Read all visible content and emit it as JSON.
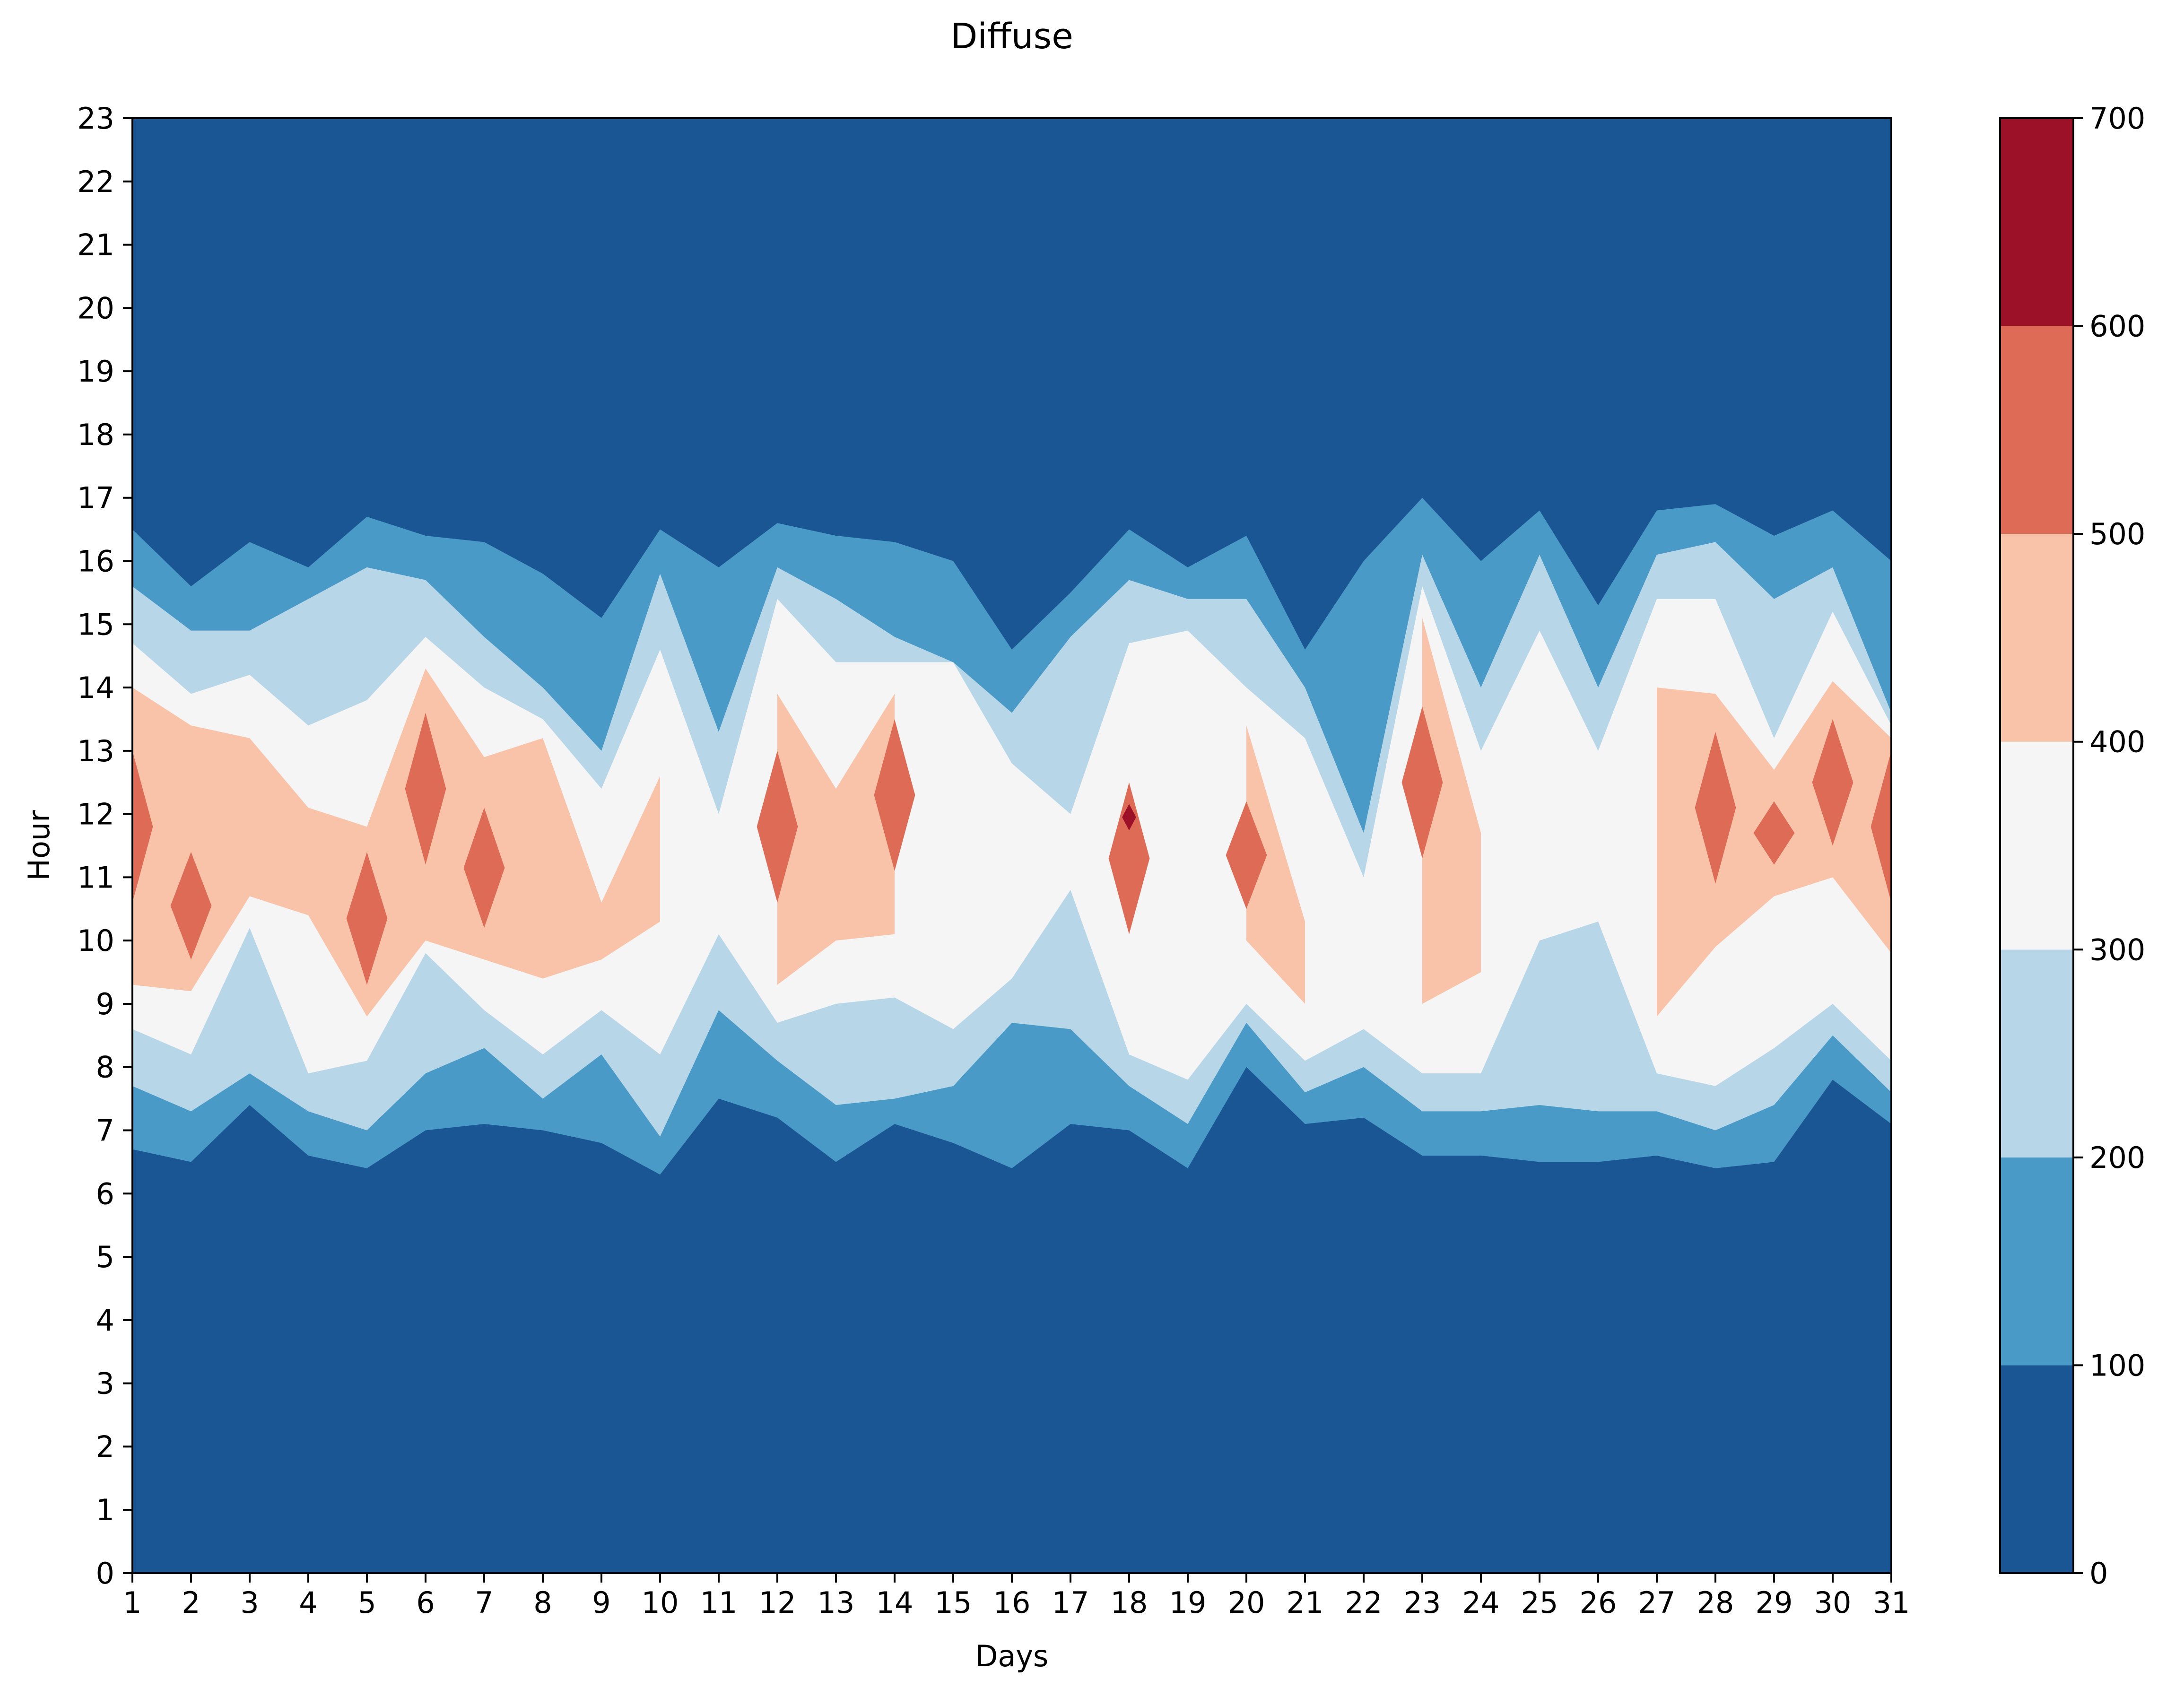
{
  "chart_data": {
    "type": "heatmap",
    "subtype": "filled-contour",
    "title": "Diffuse",
    "xlabel": "Days",
    "ylabel": "Hour",
    "xlim": [
      1,
      31
    ],
    "ylim": [
      0,
      23
    ],
    "x_ticks": [
      "1",
      "2",
      "3",
      "4",
      "5",
      "6",
      "7",
      "8",
      "9",
      "10",
      "11",
      "12",
      "13",
      "14",
      "15",
      "16",
      "17",
      "18",
      "19",
      "20",
      "21",
      "22",
      "23",
      "24",
      "25",
      "26",
      "27",
      "28",
      "29",
      "30",
      "31"
    ],
    "y_ticks": [
      "0",
      "1",
      "2",
      "3",
      "4",
      "5",
      "6",
      "7",
      "8",
      "9",
      "10",
      "11",
      "12",
      "13",
      "14",
      "15",
      "16",
      "17",
      "18",
      "19",
      "20",
      "21",
      "22",
      "23"
    ],
    "colorbar": {
      "ticks": [
        "0",
        "100",
        "200",
        "300",
        "400",
        "500",
        "600",
        "700"
      ],
      "levels": [
        0,
        100,
        200,
        300,
        400,
        500,
        600,
        700
      ],
      "colors": [
        "#1a5694",
        "#4a9ac8",
        "#b7d7e8",
        "#f5f5f5",
        "#f8c3a8",
        "#dd6b55",
        "#9c1127"
      ]
    },
    "approx_level_boundaries": {
      "description_days": [
        1,
        2,
        3,
        4,
        5,
        6,
        7,
        8,
        9,
        10,
        11,
        12,
        13,
        14,
        15,
        16,
        17,
        18,
        19,
        20,
        21,
        22,
        23,
        24,
        25,
        26,
        27,
        28,
        29,
        30,
        31
      ],
      "lower_100": [
        6.7,
        6.5,
        7.4,
        6.6,
        6.4,
        7.0,
        7.1,
        7.0,
        6.8,
        6.3,
        7.5,
        7.2,
        6.5,
        7.1,
        6.8,
        6.4,
        7.1,
        7.0,
        6.4,
        8.0,
        7.1,
        7.2,
        6.6,
        6.6,
        6.5,
        6.5,
        6.6,
        6.4,
        6.5,
        7.8,
        7.1
      ],
      "upper_100": [
        16.5,
        15.6,
        16.3,
        15.9,
        16.7,
        16.4,
        16.3,
        15.8,
        15.1,
        16.5,
        15.9,
        16.6,
        16.4,
        16.3,
        16.0,
        14.6,
        15.5,
        16.5,
        15.9,
        16.4,
        14.6,
        16.0,
        17.0,
        16.0,
        16.8,
        15.3,
        16.8,
        16.9,
        16.4,
        16.8,
        16.0
      ],
      "lower_200": [
        7.7,
        7.3,
        7.9,
        7.3,
        7.0,
        7.9,
        8.3,
        7.5,
        8.2,
        6.9,
        8.9,
        8.1,
        7.4,
        7.5,
        7.7,
        8.7,
        8.6,
        7.7,
        7.1,
        8.7,
        7.6,
        8.0,
        7.3,
        7.3,
        7.4,
        7.3,
        7.3,
        7.0,
        7.4,
        8.5,
        7.6
      ],
      "upper_200": [
        15.6,
        14.9,
        14.9,
        15.4,
        15.9,
        15.7,
        14.8,
        14.0,
        13.0,
        15.8,
        13.3,
        15.9,
        15.4,
        14.8,
        14.4,
        13.6,
        14.8,
        15.7,
        15.4,
        15.4,
        14.0,
        11.7,
        16.1,
        14.0,
        16.1,
        14.0,
        16.1,
        16.3,
        15.4,
        15.9,
        13.6
      ],
      "lower_300": [
        8.6,
        8.2,
        10.2,
        7.9,
        8.1,
        9.8,
        8.9,
        8.2,
        8.9,
        8.2,
        10.1,
        8.7,
        9.0,
        9.1,
        8.6,
        9.4,
        10.8,
        8.2,
        7.8,
        9.0,
        8.1,
        8.6,
        7.9,
        7.9,
        10.0,
        10.3,
        7.9,
        7.7,
        8.3,
        9.0,
        8.1
      ],
      "upper_300": [
        14.7,
        13.9,
        14.2,
        13.4,
        13.8,
        14.8,
        14.0,
        13.5,
        12.4,
        14.6,
        12.0,
        15.4,
        14.4,
        14.4,
        14.4,
        12.8,
        12.0,
        14.7,
        14.9,
        14.0,
        13.2,
        11.0,
        15.6,
        13.0,
        14.9,
        13.0,
        15.4,
        15.4,
        13.2,
        15.2,
        13.4
      ],
      "lower_400": [
        9.3,
        9.2,
        10.7,
        10.4,
        8.8,
        10.0,
        9.7,
        9.4,
        9.7,
        10.3,
        null,
        9.3,
        10.0,
        10.1,
        null,
        null,
        null,
        8.7,
        null,
        10.0,
        9.0,
        null,
        9.0,
        9.5,
        null,
        null,
        8.8,
        9.9,
        10.7,
        11.0,
        9.8
      ],
      "upper_400": [
        14.0,
        13.4,
        13.2,
        12.1,
        11.8,
        14.3,
        12.9,
        13.2,
        10.6,
        12.6,
        null,
        13.9,
        12.4,
        13.9,
        null,
        null,
        null,
        12.8,
        11.4,
        13.4,
        10.3,
        null,
        15.1,
        11.7,
        null,
        null,
        14.0,
        13.9,
        12.7,
        14.1,
        13.2
      ],
      "upper_500": [
        13.0,
        11.4,
        null,
        null,
        11.4,
        13.6,
        12.1,
        null,
        null,
        null,
        null,
        13.0,
        null,
        13.5,
        null,
        null,
        null,
        12.5,
        null,
        12.2,
        null,
        null,
        13.7,
        null,
        null,
        null,
        null,
        13.3,
        12.2,
        13.5,
        13.0
      ],
      "max_value_approx": 620
    }
  }
}
